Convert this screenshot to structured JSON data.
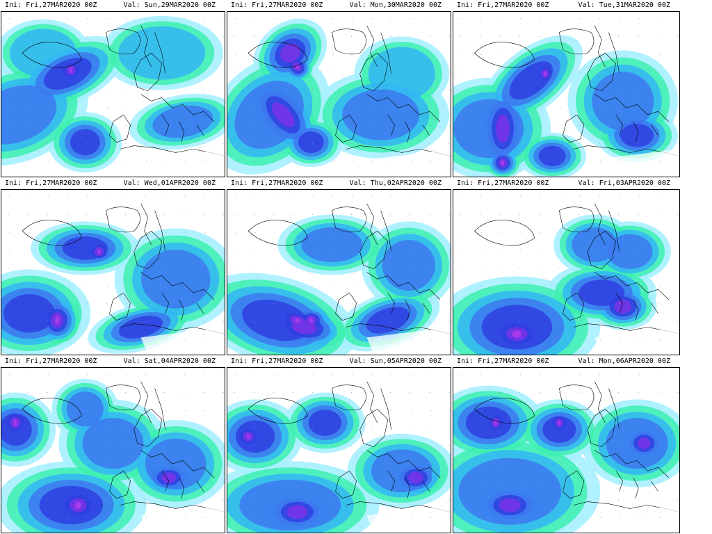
{
  "colors": {
    "light_cyan": "#a7f0ff",
    "mint": "#3df0b0",
    "sky": "#34b6f5",
    "blue": "#3d78f0",
    "royal": "#2f3fe0",
    "purple": "#7a32e6",
    "magenta": "#b43cea",
    "coast": "#000000"
  },
  "panels": [
    {
      "ini": "Ini: Fri,27MAR2020 00Z",
      "val": "Val: Sun,29MAR2020 00Z"
    },
    {
      "ini": "Ini: Fri,27MAR2020 00Z",
      "val": "Val: Mon,30MAR2020 00Z"
    },
    {
      "ini": "Ini: Fri,27MAR2020 00Z",
      "val": "Val: Tue,31MAR2020 00Z"
    },
    {
      "ini": "Ini: Fri,27MAR2020 00Z",
      "val": "Val: Wed,01APR2020 00Z"
    },
    {
      "ini": "Ini: Fri,27MAR2020 00Z",
      "val": "Val: Thu,02APR2020 00Z"
    },
    {
      "ini": "Ini: Fri,27MAR2020 00Z",
      "val": "Val: Fri,03APR2020 00Z"
    },
    {
      "ini": "Ini: Fri,27MAR2020 00Z",
      "val": "Val: Sat,04APR2020 00Z"
    },
    {
      "ini": "Ini: Fri,27MAR2020 00Z",
      "val": "Val: Sun,05APR2020 00Z"
    },
    {
      "ini": "Ini: Fri,27MAR2020 00Z",
      "val": "Val: Mon,06APR2020 00Z"
    }
  ]
}
